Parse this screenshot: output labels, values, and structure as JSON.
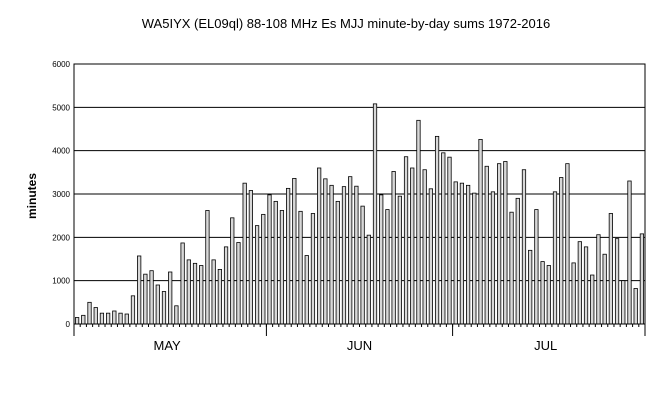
{
  "chart_data": {
    "type": "bar",
    "title": "WA5IYX (EL09ql) 88-108 MHz Es MJJ minute-by-day sums 1972-2016",
    "ylabel": "minutes",
    "xlabel": "",
    "ylim": [
      0,
      6000
    ],
    "yticks": [
      "0",
      "1000",
      "2000",
      "3000",
      "4000",
      "5000",
      "6000"
    ],
    "grid": "horizontal",
    "legend": "none",
    "bar_fill": "#d8d8d8",
    "bar_stroke": "#000000",
    "month_labels": [
      {
        "label": "MAY",
        "day_index": 15
      },
      {
        "label": "JUN",
        "day_index": 46
      },
      {
        "label": "JUL",
        "day_index": 76
      }
    ],
    "month_dividers": [
      0,
      31,
      61,
      92
    ],
    "values": [
      150,
      200,
      500,
      380,
      250,
      250,
      300,
      250,
      230,
      650,
      1570,
      1150,
      1230,
      900,
      750,
      1200,
      420,
      1870,
      1480,
      1400,
      1350,
      2620,
      1480,
      1260,
      1780,
      2450,
      1880,
      3250,
      3080,
      2270,
      2530,
      2980,
      2830,
      2620,
      3130,
      3360,
      2600,
      1580,
      2550,
      3600,
      3350,
      3200,
      2830,
      3170,
      3400,
      3180,
      2720,
      2050,
      5080,
      2980,
      2640,
      3520,
      2950,
      3860,
      3600,
      4700,
      3560,
      3120,
      4330,
      3950,
      3850,
      3280,
      3250,
      3200,
      3020,
      4260,
      3640,
      3050,
      3700,
      3750,
      2580,
      2900,
      3560,
      1700,
      2640,
      1440,
      1350,
      3050,
      3380,
      3700,
      1410,
      1900,
      1780,
      1130,
      2060,
      1610,
      2550,
      1970,
      1000,
      3300,
      820,
      2080
    ]
  }
}
